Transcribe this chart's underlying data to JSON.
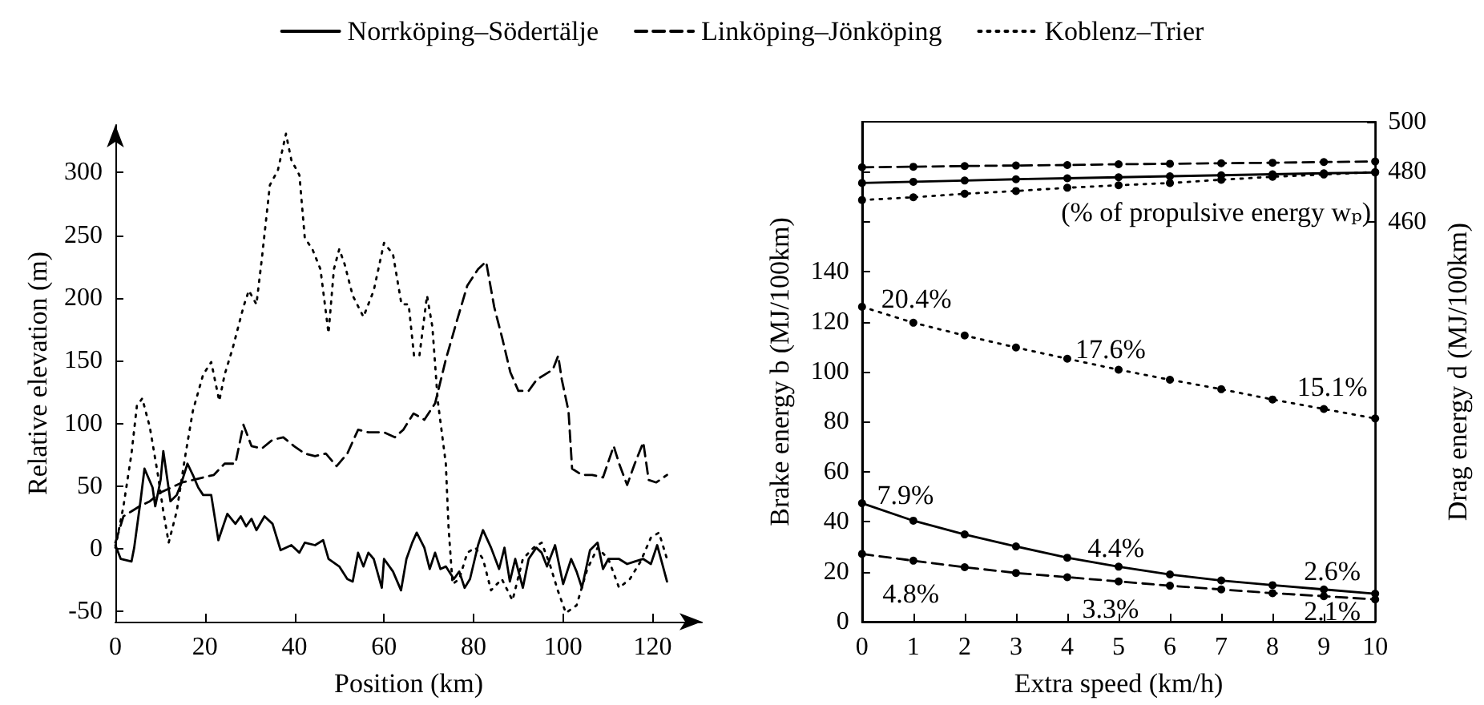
{
  "chart_data": [
    {
      "type": "line",
      "xlabel": "Position (km)",
      "ylabel": "Relative elevation (m)",
      "xlim": [
        0,
        131
      ],
      "ylim": [
        -58,
        338
      ],
      "xticks": [
        0,
        20,
        40,
        60,
        80,
        100,
        120
      ],
      "yticks": [
        -50,
        0,
        50,
        100,
        150,
        200,
        250,
        300
      ],
      "grid": false,
      "legend": "top",
      "marker": "none",
      "series": [
        {
          "name": "Norrköping–Södertälje",
          "color": "#000000",
          "line_style": "solid",
          "x": [
            0,
            1.2,
            3.6,
            4.2,
            5.6,
            6.5,
            8.3,
            8.9,
            10.1,
            10.7,
            12.3,
            13.7,
            14.6,
            16.1,
            17.3,
            18.5,
            19.6,
            21.4,
            23,
            25,
            26.8,
            28,
            29.2,
            30.4,
            31.5,
            33.3,
            35.1,
            36.9,
            39.3,
            41.1,
            42.3,
            44.6,
            46.4,
            47.6,
            50,
            51.8,
            53,
            54.2,
            55.4,
            56.5,
            57.7,
            59.5,
            60,
            62,
            63.8,
            65,
            66.3,
            67.3,
            69,
            70.2,
            71.4,
            72.6,
            73.8,
            75.6,
            76.8,
            78,
            79.2,
            81,
            82.1,
            83.9,
            85.7,
            86.9,
            88.1,
            89.3,
            91,
            92.3,
            94,
            95.2,
            96.4,
            98.2,
            100,
            101.8,
            103,
            104.2,
            106,
            107.7,
            108.9,
            110.1,
            112.5,
            114.3,
            116,
            117.9,
            119.6,
            121,
            122,
            123.2
          ],
          "values": [
            3,
            -8,
            -10,
            1,
            38,
            64,
            49,
            34,
            55,
            78,
            38,
            43,
            51,
            68,
            59,
            49,
            43,
            43,
            7,
            28,
            20,
            26,
            18,
            24,
            15,
            26,
            20,
            -1,
            3,
            -3,
            5,
            3,
            7,
            -8,
            -14,
            -24,
            -26,
            -3,
            -14,
            -3,
            -8,
            -31,
            -8,
            -18,
            -33,
            -8,
            5,
            13,
            1,
            -16,
            -3,
            -16,
            -14,
            -24,
            -18,
            -31,
            -24,
            3,
            15,
            1,
            -16,
            1,
            -26,
            -8,
            -31,
            -8,
            1,
            -3,
            -14,
            3,
            -28,
            -8,
            -18,
            -31,
            -1,
            5,
            -16,
            -8,
            -8,
            -12,
            -10,
            -8,
            -12,
            3,
            -10,
            -26
          ]
        },
        {
          "name": "Linköping–Jönköping",
          "color": "#000000",
          "line_style": "dashed",
          "x": [
            0,
            1.8,
            3.6,
            5.4,
            7.7,
            10.1,
            12.5,
            14.9,
            17.3,
            19.6,
            22,
            24.4,
            26.8,
            28.6,
            30.4,
            32.7,
            35.1,
            37.5,
            39.9,
            42.3,
            44.6,
            47,
            49.4,
            51.8,
            54.2,
            56.5,
            60,
            62.4,
            64.3,
            66.6,
            69,
            71.4,
            73.8,
            76.2,
            78.6,
            81,
            82.8,
            84.6,
            86.4,
            88.2,
            90,
            92.3,
            94.1,
            95.9,
            97.7,
            98.9,
            99.7,
            101.2,
            102,
            104.2,
            106.5,
            108.9,
            111.3,
            112.5,
            114.3,
            116,
            117.9,
            119.1,
            120.8,
            123.2
          ],
          "values": [
            5,
            26,
            30,
            34,
            38,
            45,
            49,
            53,
            55,
            57,
            59,
            68,
            68,
            99,
            82,
            80,
            87,
            89,
            82,
            76,
            74,
            76,
            66,
            76,
            95,
            93,
            93,
            89,
            95,
            108,
            103,
            116,
            151,
            181,
            210,
            223,
            229,
            193,
            168,
            141,
            126,
            126,
            135,
            139,
            143,
            154,
            135,
            110,
            64,
            59,
            59,
            57,
            82,
            68,
            51,
            68,
            85,
            55,
            53,
            59
          ]
        },
        {
          "name": "Koblenz–Trier",
          "color": "#000000",
          "line_style": "dotted",
          "x": [
            0,
            1.8,
            3.6,
            4.8,
            6,
            7.7,
            9.5,
            10.7,
            11.9,
            13.7,
            15.5,
            17.3,
            19.6,
            21.4,
            23.2,
            24.4,
            26.2,
            28.6,
            29.8,
            31.5,
            32.7,
            34.5,
            36.3,
            38.1,
            39.3,
            41.1,
            42.3,
            44,
            45.8,
            47.6,
            48.8,
            50,
            51.2,
            53,
            55.4,
            57.7,
            60,
            62,
            63.9,
            65.5,
            66.7,
            67.9,
            69.6,
            70.8,
            72,
            73.8,
            74.4,
            75.3,
            76.8,
            78.6,
            80.4,
            82.1,
            83.9,
            86.3,
            88.7,
            91,
            93.4,
            95.2,
            97,
            98.8,
            100.6,
            103,
            105.4,
            107.7,
            110.1,
            112.5,
            114.9,
            117.3,
            119.6,
            121.4,
            123.2
          ],
          "values": [
            1,
            34,
            76,
            114,
            120,
            97,
            59,
            30,
            5,
            30,
            72,
            110,
            139,
            149,
            118,
            139,
            160,
            193,
            206,
            195,
            231,
            290,
            302,
            331,
            310,
            298,
            248,
            239,
            223,
            172,
            223,
            239,
            227,
            202,
            185,
            206,
            244,
            235,
            195,
            195,
            154,
            154,
            202,
            177,
            118,
            68,
            18,
            -28,
            -24,
            -3,
            1,
            -8,
            -33,
            -24,
            -41,
            -8,
            1,
            5,
            -12,
            -33,
            -51,
            -45,
            -16,
            1,
            -8,
            -31,
            -24,
            -10,
            9,
            13,
            -8
          ]
        }
      ]
    },
    {
      "type": "line",
      "xlabel": "Extra speed (km/h)",
      "ylabel": "Brake energy b (MJ/100km)",
      "y2label": "Drag energy d (MJ/100km)",
      "x": [
        0,
        1,
        2,
        3,
        4,
        5,
        6,
        7,
        8,
        9,
        10
      ],
      "xlim": [
        0,
        10
      ],
      "ylim": [
        0,
        200
      ],
      "y2lim": [
        300,
        500
      ],
      "xticks": [
        0,
        1,
        2,
        3,
        4,
        5,
        6,
        7,
        8,
        9,
        10
      ],
      "yticks": [
        0,
        20,
        40,
        60,
        80,
        100,
        120,
        140,
        {
          "value": 160,
          "label": null
        },
        {
          "value": 180,
          "label": null
        }
      ],
      "y2ticks": [
        460,
        480,
        500
      ],
      "grid": false,
      "marker": "circle",
      "series": [
        {
          "color": "#000000",
          "line_style": "solid",
          "values": [
            47.4,
            40.4,
            34.9,
            30.1,
            25.6,
            22.0,
            18.9,
            16.5,
            14.6,
            12.9,
            11.2
          ]
        },
        {
          "color": "#000000",
          "line_style": "dashed",
          "values": [
            27.1,
            24.4,
            21.8,
            19.5,
            17.8,
            16.1,
            14.4,
            12.9,
            11.4,
            10.2,
            8.9
          ]
        },
        {
          "color": "#000000",
          "line_style": "dotted",
          "values": [
            126,
            119.6,
            114.5,
            109.7,
            105.2,
            100.8,
            96.8,
            93.0,
            88.9,
            85.1,
            81.3
          ]
        },
        {
          "color": "#000000",
          "line_style": "solid",
          "axis": "y2",
          "values": [
            475.5,
            476.0,
            476.5,
            477.0,
            477.4,
            477.8,
            478.2,
            478.6,
            479.0,
            479.4,
            479.7
          ]
        },
        {
          "color": "#000000",
          "line_style": "dashed",
          "axis": "y2",
          "values": [
            481.8,
            482.0,
            482.3,
            482.5,
            482.7,
            483.0,
            483.2,
            483.4,
            483.6,
            483.9,
            484.1
          ]
        },
        {
          "color": "#000000",
          "line_style": "dotted",
          "axis": "y2",
          "values": [
            468.7,
            469.8,
            471.2,
            472.3,
            473.6,
            474.6,
            475.5,
            476.8,
            478.0,
            478.9,
            479.9
          ]
        }
      ],
      "annotations": [
        "(% of propulsive energy wₚ)",
        "20.4%",
        "17.6%",
        "15.1%",
        "7.9%",
        "4.4%",
        "2.6%",
        "4.8%",
        "3.3%",
        "2.1%"
      ]
    }
  ]
}
